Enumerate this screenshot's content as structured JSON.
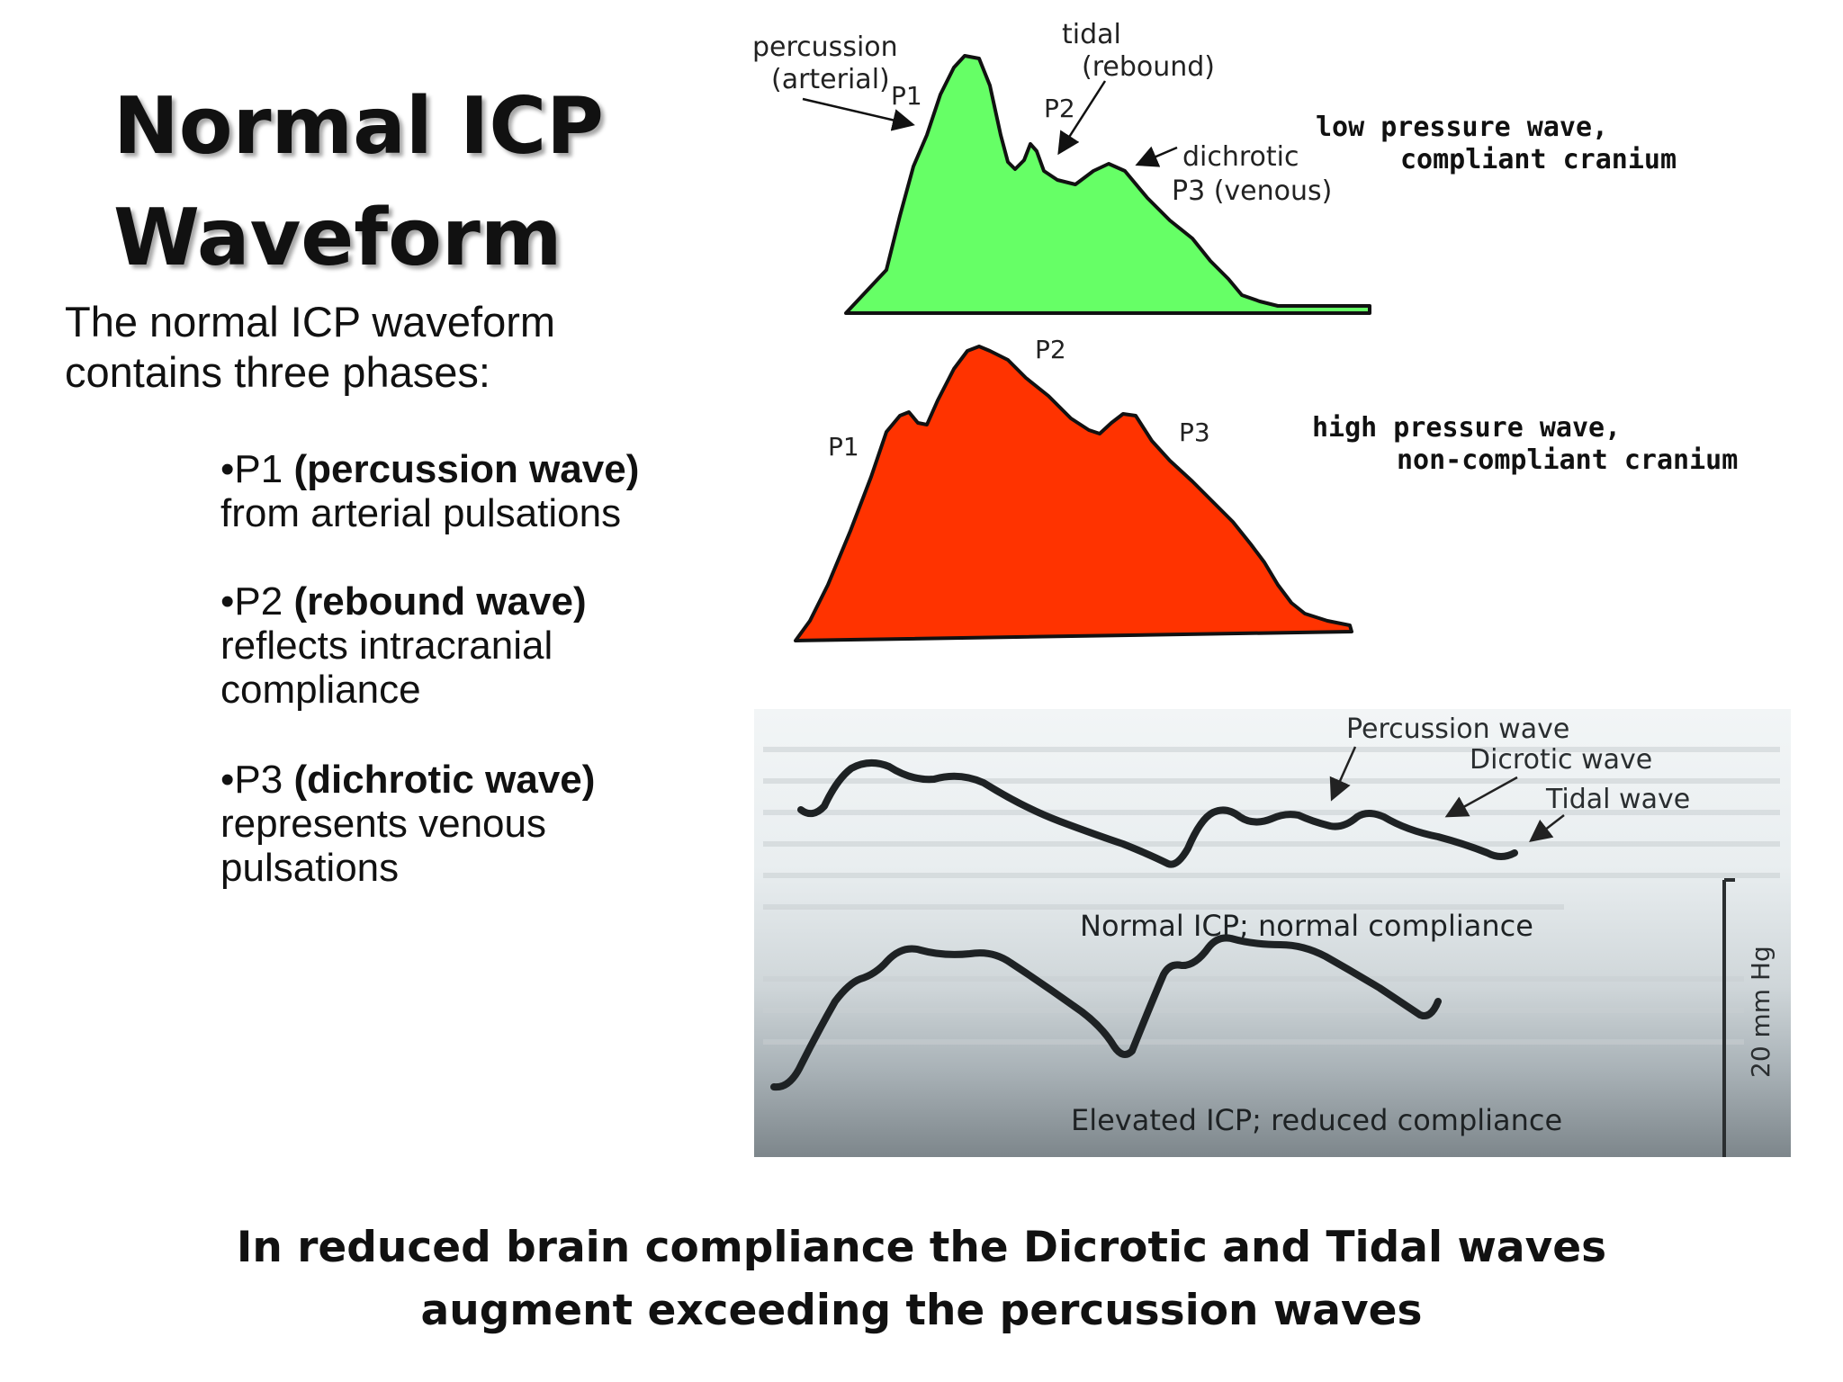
{
  "title": {
    "line1": "Normal ICP",
    "line2": "Waveform"
  },
  "intro": {
    "line1": "The normal ICP waveform",
    "line2": "contains three phases:"
  },
  "phases": [
    {
      "code": "•P1 ",
      "name": "(percussion wave)",
      "desc": [
        "from arterial pulsations"
      ]
    },
    {
      "code": "•P2 ",
      "name": "(rebound wave)",
      "desc": [
        "reflects intracranial",
        "compliance"
      ]
    },
    {
      "code": "•P3 ",
      "name": "(dichrotic wave)",
      "desc": [
        "represents venous",
        "pulsations"
      ]
    }
  ],
  "green_wave": {
    "color": "#66ff66",
    "labels": {
      "percussion": "percussion",
      "arterial": "(arterial)",
      "p1": "P1",
      "tidal": "tidal",
      "rebound": "(rebound)",
      "p2": "P2",
      "dichrotic": "dichrotic",
      "p3_venous": "P3 (venous)"
    },
    "note": {
      "line1": "low pressure wave,",
      "line2": "compliant cranium"
    }
  },
  "red_wave": {
    "color": "#ff3300",
    "labels": {
      "p1": "P1",
      "p2": "P2",
      "p3": "P3"
    },
    "note": {
      "line1": "high pressure wave,",
      "line2": "non-compliant cranium"
    }
  },
  "tracing": {
    "labels": {
      "percussion": "Percussion wave",
      "dicrotic": "Dicrotic wave",
      "tidal": "Tidal wave",
      "normal": "Normal ICP; normal compliance",
      "elevated": "Elevated ICP; reduced compliance",
      "scale": "20 mm Hg"
    }
  },
  "caption": {
    "line1": "In reduced brain compliance the Dicrotic and Tidal waves",
    "line2": "augment exceeding the percussion waves"
  }
}
